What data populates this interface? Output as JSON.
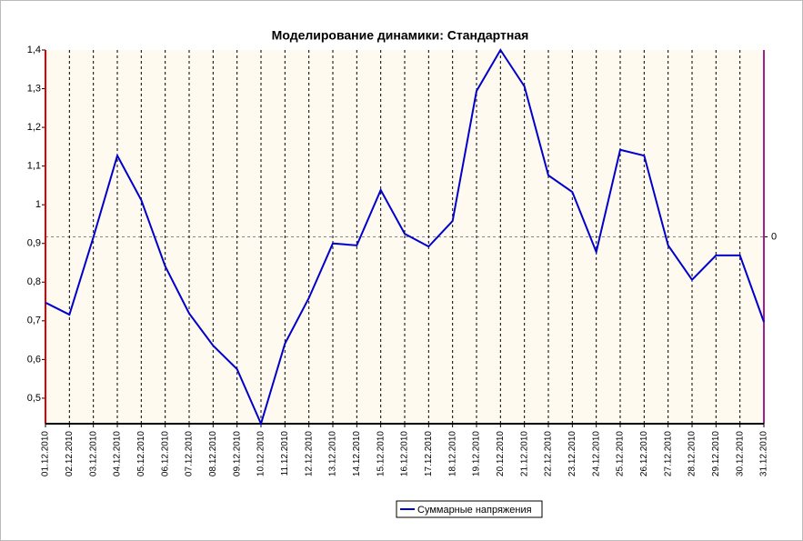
{
  "chart_data": {
    "type": "line",
    "title": "Моделирование динамики: Стандартная",
    "categories": [
      "01.12.2010",
      "02.12.2010",
      "03.12.2010",
      "04.12.2010",
      "05.12.2010",
      "06.12.2010",
      "07.12.2010",
      "08.12.2010",
      "09.12.2010",
      "10.12.2010",
      "11.12.2010",
      "12.12.2010",
      "13.12.2010",
      "14.12.2010",
      "15.12.2010",
      "16.12.2010",
      "17.12.2010",
      "18.12.2010",
      "19.12.2010",
      "20.12.2010",
      "21.12.2010",
      "22.12.2010",
      "23.12.2010",
      "24.12.2010",
      "25.12.2010",
      "26.12.2010",
      "27.12.2010",
      "28.12.2010",
      "29.12.2010",
      "30.12.2010",
      "31.12.2010"
    ],
    "series": [
      {
        "name": "Суммарные напряжения",
        "color": "#0000cc",
        "values": [
          0.747,
          0.716,
          0.916,
          1.127,
          1.012,
          0.841,
          0.719,
          0.636,
          0.575,
          0.434,
          0.641,
          0.759,
          0.9,
          0.895,
          1.038,
          0.925,
          0.892,
          0.958,
          1.294,
          1.4,
          1.306,
          1.076,
          1.033,
          0.878,
          1.142,
          1.127,
          0.895,
          0.806,
          0.869,
          0.869,
          0.697
        ]
      }
    ],
    "ylim": [
      0.434,
      1.4
    ],
    "yticks": [
      {
        "value": 0.5,
        "label": "0,5"
      },
      {
        "value": 0.6,
        "label": "0,6"
      },
      {
        "value": 0.7,
        "label": "0,7"
      },
      {
        "value": 0.8,
        "label": "0,8"
      },
      {
        "value": 0.9,
        "label": "0,9"
      },
      1,
      {
        "value": 1.1,
        "label": "1,1"
      },
      {
        "value": 1.2,
        "label": "1,2"
      },
      {
        "value": 1.3,
        "label": "1,3"
      },
      {
        "value": 1.4,
        "label": "1,4"
      }
    ],
    "y2lim": [
      -1,
      1
    ],
    "y2ticks": [
      0
    ],
    "grid": true,
    "legend": "bottom"
  }
}
